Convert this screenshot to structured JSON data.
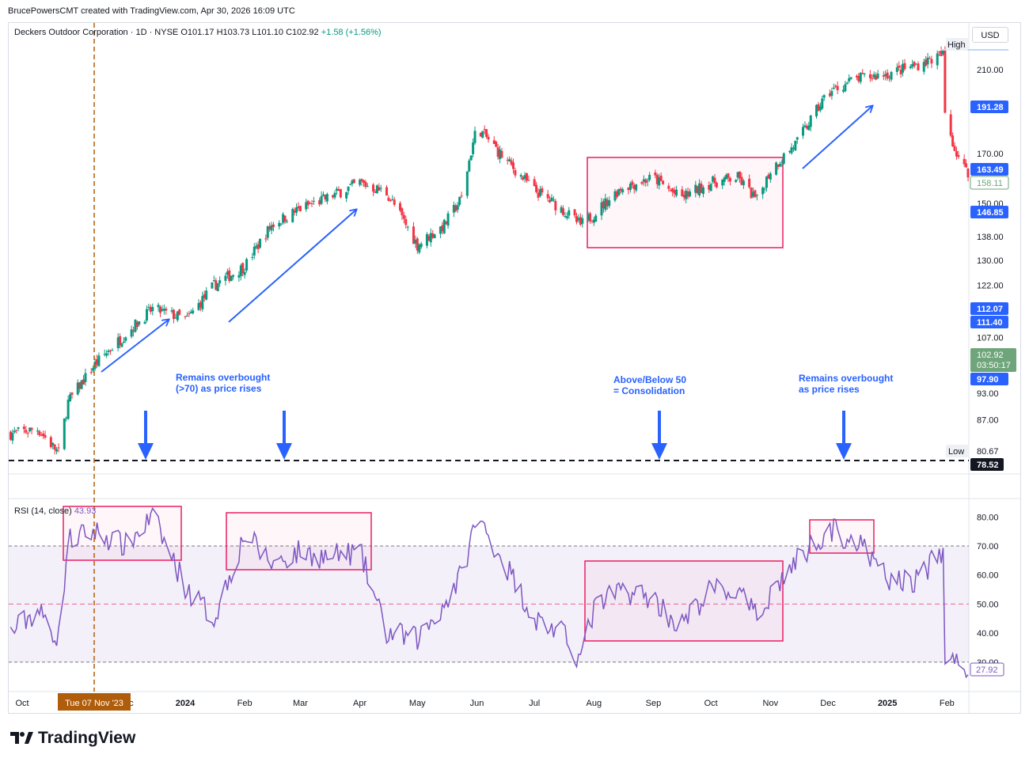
{
  "credit": "BrucePowersCMT created with TradingView.com, Apr 30, 2026 16:09 UTC",
  "brand": "TradingView",
  "header": {
    "title": "Deckers Outdoor Corporation · 1D · NYSE",
    "open": "O101.17",
    "high": "H103.73",
    "low": "L101.10",
    "close": "C102.92",
    "change": "+1.58 (+1.56%)"
  },
  "currency": "USD",
  "rsi_legend": {
    "label": "RSI (14, close)",
    "value": "43.93"
  },
  "annotations": [
    "Remains overbought\n(>70) as price rises",
    "Above/Below 50\n= Consolidation",
    "Remains overbought\nas price rises"
  ],
  "price_axis": {
    "ticks": [
      "210.00",
      "170.00",
      "150.00",
      "138.00",
      "130.00",
      "122.00",
      "107.00",
      "93.00",
      "87.00"
    ],
    "labels": {
      "high": "High",
      "low": "Low",
      "low_value": "80.67",
      "low_line": "78.52",
      "tags": [
        "191.28",
        "163.49",
        "158.11",
        "146.85",
        "112.07",
        "111.40",
        "97.90"
      ],
      "last_price": "102.92",
      "countdown": "03:50:17"
    }
  },
  "rsi_axis": {
    "ticks": [
      "80.00",
      "70.00",
      "60.00",
      "50.00",
      "40.00",
      "30.00"
    ],
    "current": "27.92"
  },
  "time_axis": {
    "labels": [
      "Oct",
      "Dec",
      "2024",
      "Feb",
      "Mar",
      "Apr",
      "May",
      "Jun",
      "Jul",
      "Aug",
      "Sep",
      "Oct",
      "Nov",
      "Dec",
      "2025",
      "Feb"
    ],
    "crosshair_date": "Tue 07 Nov '23"
  },
  "colors": {
    "up": "#089981",
    "down": "#f23645",
    "blue": "#2962ff",
    "rsi": "#7e57c2",
    "box": "#e91e63",
    "last": "#6ea57a"
  },
  "chart_data": [
    {
      "type": "line",
      "title": "Deckers Outdoor Corporation · 1D · NYSE",
      "note": "daily candlesticks; approximate closing path",
      "x": [
        "2023-10-02",
        "2023-10-16",
        "2023-10-27",
        "2023-11-01",
        "2023-11-15",
        "2023-12-01",
        "2023-12-15",
        "2024-01-02",
        "2024-01-16",
        "2024-02-01",
        "2024-02-15",
        "2024-03-01",
        "2024-03-15",
        "2024-04-01",
        "2024-04-15",
        "2024-05-01",
        "2024-05-15",
        "2024-05-24",
        "2024-06-01",
        "2024-06-15",
        "2024-07-01",
        "2024-07-15",
        "2024-07-25",
        "2024-08-01",
        "2024-08-15",
        "2024-09-01",
        "2024-09-15",
        "2024-10-01",
        "2024-10-15",
        "2024-10-25",
        "2024-11-01",
        "2024-11-15",
        "2024-12-01",
        "2024-12-15",
        "2025-01-02",
        "2025-01-15",
        "2025-01-30",
        "2025-01-31",
        "2025-02-05",
        "2025-02-12"
      ],
      "values": [
        84,
        85,
        80,
        91,
        100,
        108,
        115,
        112,
        122,
        128,
        142,
        148,
        152,
        158,
        154,
        135,
        142,
        152,
        182,
        168,
        155,
        148,
        142,
        146,
        156,
        160,
        152,
        158,
        160,
        151,
        163,
        175,
        198,
        205,
        208,
        212,
        218,
        188,
        172,
        161
      ],
      "ylim": [
        78.52,
        222
      ],
      "scale": "log"
    },
    {
      "type": "line",
      "title": "RSI (14, close)",
      "x": [
        "2023-10-02",
        "2023-10-16",
        "2023-10-27",
        "2023-11-01",
        "2023-11-15",
        "2023-12-01",
        "2023-12-15",
        "2024-01-02",
        "2024-01-16",
        "2024-02-01",
        "2024-02-15",
        "2024-03-01",
        "2024-03-15",
        "2024-04-01",
        "2024-04-15",
        "2024-05-01",
        "2024-05-15",
        "2024-05-24",
        "2024-06-01",
        "2024-06-15",
        "2024-07-01",
        "2024-07-15",
        "2024-07-25",
        "2024-08-01",
        "2024-08-15",
        "2024-09-01",
        "2024-09-15",
        "2024-10-01",
        "2024-10-15",
        "2024-10-25",
        "2024-11-01",
        "2024-11-15",
        "2024-12-01",
        "2024-12-15",
        "2025-01-02",
        "2025-01-15",
        "2025-01-30",
        "2025-01-31",
        "2025-02-05",
        "2025-02-12"
      ],
      "values": [
        40,
        48,
        38,
        72,
        75,
        70,
        80,
        55,
        45,
        74,
        64,
        68,
        66,
        68,
        40,
        38,
        50,
        60,
        80,
        65,
        45,
        40,
        31,
        48,
        55,
        52,
        42,
        55,
        54,
        45,
        54,
        65,
        76,
        72,
        58,
        58,
        68,
        30,
        31,
        27.92
      ],
      "ylim": [
        22,
        84
      ],
      "levels": [
        70,
        50,
        30
      ]
    }
  ]
}
